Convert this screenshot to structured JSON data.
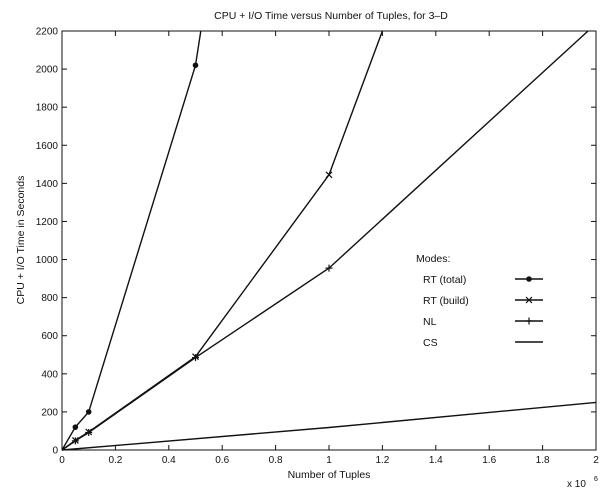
{
  "chart_data": {
    "type": "line",
    "title": "CPU + I/O Time versus Number of Tuples, for 3–D",
    "xlabel": "Number of Tuples",
    "ylabel": "CPU + I/O Time in Seconds",
    "x_multiplier": "x 10",
    "x_multiplier_exp": "6",
    "xlim": [
      0,
      2
    ],
    "ylim": [
      0,
      2200
    ],
    "xticks": [
      0,
      0.2,
      0.4,
      0.6,
      0.8,
      1,
      1.2,
      1.4,
      1.6,
      1.8,
      2
    ],
    "xtick_labels": [
      "0",
      "0.2",
      "0.4",
      "0.6",
      "0.8",
      "1",
      "1.2",
      "1.4",
      "1.6",
      "1.8",
      "2"
    ],
    "yticks": [
      0,
      200,
      400,
      600,
      800,
      1000,
      1200,
      1400,
      1600,
      1800,
      2000,
      2200
    ],
    "ytick_labels": [
      "0",
      "200",
      "400",
      "600",
      "800",
      "1000",
      "1200",
      "1400",
      "1600",
      "1800",
      "2000",
      "2200"
    ],
    "grid": false,
    "legend_title": "Modes:",
    "legend_position": "right",
    "series": [
      {
        "name": "RT (total)",
        "marker": "circle",
        "x": [
          0,
          0.05,
          0.1,
          0.5,
          0.52
        ],
        "y": [
          0,
          120,
          200,
          2020,
          2200
        ]
      },
      {
        "name": "RT (build)",
        "marker": "x",
        "x": [
          0,
          0.05,
          0.1,
          0.5,
          1.0,
          1.2
        ],
        "y": [
          0,
          50,
          95,
          490,
          1445,
          2200
        ]
      },
      {
        "name": "NL",
        "marker": "plus",
        "x": [
          0,
          0.05,
          0.1,
          0.5,
          1.0,
          1.97
        ],
        "y": [
          0,
          48,
          92,
          485,
          955,
          2200
        ]
      },
      {
        "name": "CS",
        "marker": "none",
        "x": [
          0,
          1.0,
          2.0
        ],
        "y": [
          0,
          118,
          250
        ]
      }
    ]
  }
}
